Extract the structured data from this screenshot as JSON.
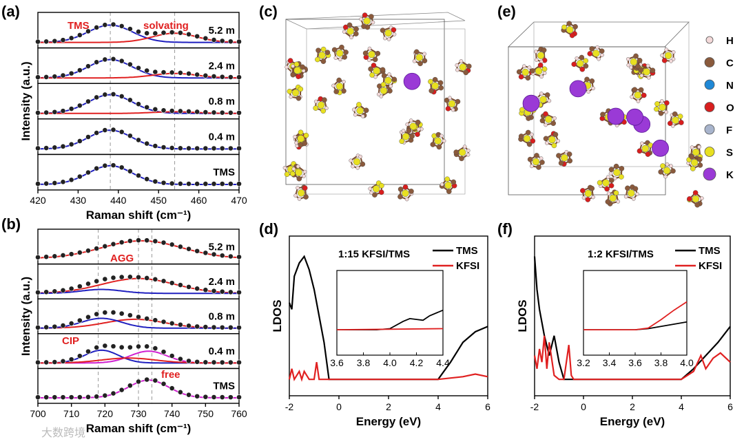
{
  "panel_labels": {
    "a": "(a)",
    "b": "(b)",
    "c": "(c)",
    "d": "(d)",
    "e": "(e)",
    "f": "(f)"
  },
  "watermark": "大数跨境",
  "chart_data": [
    {
      "id": "a",
      "type": "line",
      "title": "",
      "xlabel": "Raman shift (cm⁻¹)",
      "ylabel": "Intensity (a.u.)",
      "xlim": [
        420,
        470
      ],
      "xticks": [
        420,
        430,
        440,
        450,
        460,
        470
      ],
      "dashed_lines_x": [
        438,
        454
      ],
      "annotations": [
        "TMS",
        "solvating"
      ],
      "subplots": [
        {
          "label": "5.2 m",
          "series": [
            {
              "name": "TMS (blue fit)",
              "color": "#1f1fbf",
              "center": 438,
              "width": 5.5,
              "height": 0.85
            },
            {
              "name": "solvating (red fit)",
              "color": "#e02020",
              "center": 454,
              "width": 5.5,
              "height": 0.45
            }
          ]
        },
        {
          "label": "2.4 m",
          "series": [
            {
              "name": "TMS (blue fit)",
              "color": "#1f1fbf",
              "center": 438,
              "width": 5.5,
              "height": 0.9
            },
            {
              "name": "solvating (red fit)",
              "color": "#e02020",
              "center": 454,
              "width": 5.5,
              "height": 0.22
            }
          ]
        },
        {
          "label": "0.8 m",
          "series": [
            {
              "name": "TMS (blue fit)",
              "color": "#1f1fbf",
              "center": 438,
              "width": 5.5,
              "height": 0.92
            },
            {
              "name": "solvating (red fit)",
              "color": "#e02020",
              "center": 454,
              "width": 5.5,
              "height": 0.08
            }
          ]
        },
        {
          "label": "0.4 m",
          "series": [
            {
              "name": "TMS (blue fit)",
              "color": "#1f1fbf",
              "center": 438,
              "width": 5.5,
              "height": 0.92
            }
          ]
        },
        {
          "label": "TMS",
          "series": [
            {
              "name": "TMS (blue fit)",
              "color": "#1f1fbf",
              "center": 438,
              "width": 5.5,
              "height": 0.92
            }
          ]
        }
      ]
    },
    {
      "id": "b",
      "type": "line",
      "title": "",
      "xlabel": "Raman shift (cm⁻¹)",
      "ylabel": "Intensity (a.u.)",
      "xlim": [
        700,
        760
      ],
      "xticks": [
        700,
        710,
        720,
        730,
        740,
        750,
        760
      ],
      "dashed_lines_x": [
        718,
        730,
        734
      ],
      "annotations": [
        "AGG",
        "CIP",
        "free"
      ],
      "subplots": [
        {
          "label": "5.2 m",
          "series": [
            {
              "name": "AGG",
              "color": "#e02020",
              "center": 731,
              "width": 12,
              "height": 0.9
            }
          ]
        },
        {
          "label": "2.4 m",
          "series": [
            {
              "name": "AGG",
              "color": "#e02020",
              "center": 730,
              "width": 11,
              "height": 0.75
            },
            {
              "name": "CIP",
              "color": "#1f1fbf",
              "center": 719,
              "width": 6,
              "height": 0.2
            }
          ]
        },
        {
          "label": "0.8 m",
          "series": [
            {
              "name": "AGG",
              "color": "#e02020",
              "center": 729,
              "width": 9,
              "height": 0.45
            },
            {
              "name": "CIP",
              "color": "#1f1fbf",
              "center": 719,
              "width": 6,
              "height": 0.5
            }
          ]
        },
        {
          "label": "0.4 m",
          "series": [
            {
              "name": "CIP",
              "color": "#1f1fbf",
              "center": 719,
              "width": 5,
              "height": 0.65
            },
            {
              "name": "free",
              "color": "#d020d0",
              "center": 733,
              "width": 5.5,
              "height": 0.6
            },
            {
              "name": "AGG",
              "color": "#e02020",
              "center": 727,
              "width": 8,
              "height": 0.25
            }
          ]
        },
        {
          "label": "TMS",
          "series": [
            {
              "name": "free",
              "color": "#d020d0",
              "center": 733,
              "width": 6,
              "height": 0.9
            }
          ]
        }
      ]
    },
    {
      "id": "d",
      "type": "line",
      "title": "1:15 KFSI/TMS",
      "xlabel": "Energy (eV)",
      "ylabel": "LDOS",
      "xlim": [
        -2,
        6
      ],
      "xticks": [
        -2,
        0,
        2,
        4,
        6
      ],
      "legend": [
        "TMS",
        "KFSI"
      ],
      "series": [
        {
          "name": "TMS",
          "color": "#000000",
          "x": [
            -2,
            -1.9,
            -1.8,
            -1.6,
            -1.4,
            -1.2,
            -1.0,
            -0.8,
            -0.6,
            -0.4,
            4.0,
            4.5,
            5.0,
            5.5,
            6.0
          ],
          "y": [
            0.6,
            0.55,
            0.8,
            0.9,
            0.95,
            0.85,
            0.7,
            0.5,
            0.3,
            0.02,
            0.02,
            0.15,
            0.3,
            0.38,
            0.42
          ]
        },
        {
          "name": "KFSI",
          "color": "#e02020",
          "x": [
            -2,
            -1.9,
            -1.8,
            -1.6,
            -1.5,
            -1.4,
            -1.2,
            -1.0,
            -0.9,
            -0.8,
            -0.7,
            4.0,
            5.0,
            5.5,
            6.0
          ],
          "y": [
            0.02,
            0.1,
            0.02,
            0.08,
            0.02,
            0.08,
            0.02,
            0.02,
            0.15,
            0.02,
            0.02,
            0.02,
            0.04,
            0.06,
            0.04
          ]
        }
      ],
      "inset": {
        "xlim": [
          3.6,
          4.4
        ],
        "xticks": [
          3.6,
          3.8,
          4.0,
          4.2,
          4.4
        ],
        "series": [
          {
            "name": "TMS",
            "color": "#000000",
            "x": [
              3.6,
              3.9,
              4.0,
              4.1,
              4.15,
              4.25,
              4.3,
              4.4
            ],
            "y": [
              0.0,
              0.0,
              0.02,
              0.15,
              0.2,
              0.17,
              0.25,
              0.35
            ]
          },
          {
            "name": "KFSI",
            "color": "#e02020",
            "x": [
              3.6,
              4.0,
              4.4
            ],
            "y": [
              0.0,
              0.01,
              0.02
            ]
          }
        ]
      }
    },
    {
      "id": "f",
      "type": "line",
      "title": "1:2 KFSI/TMS",
      "xlabel": "Energy (eV)",
      "ylabel": "LDOS",
      "xlim": [
        -2,
        6
      ],
      "xticks": [
        -2,
        0,
        2,
        4,
        6
      ],
      "legend": [
        "TMS",
        "KFSI"
      ],
      "series": [
        {
          "name": "TMS",
          "color": "#000000",
          "x": [
            -2,
            -1.9,
            -1.8,
            -1.6,
            -1.4,
            -1.2,
            -1.0,
            -0.8,
            -0.6,
            4.0,
            4.5,
            5.0,
            5.5,
            6.0
          ],
          "y": [
            0.95,
            0.7,
            0.55,
            0.35,
            0.2,
            0.35,
            0.15,
            0.02,
            0.02,
            0.02,
            0.1,
            0.2,
            0.3,
            0.42
          ]
        },
        {
          "name": "KFSI",
          "color": "#e02020",
          "x": [
            -2,
            -1.9,
            -1.8,
            -1.7,
            -1.6,
            -1.5,
            -1.4,
            -1.2,
            -1.0,
            -0.8,
            -0.6,
            -0.5,
            -0.4,
            4.0,
            4.5,
            4.8,
            5.0,
            5.3,
            5.6,
            6.0
          ],
          "y": [
            0.2,
            0.1,
            0.25,
            0.15,
            0.35,
            0.1,
            0.3,
            0.05,
            0.02,
            0.02,
            0.28,
            0.05,
            0.02,
            0.02,
            0.08,
            0.2,
            0.1,
            0.18,
            0.22,
            0.15
          ]
        }
      ],
      "inset": {
        "xlim": [
          3.2,
          4.0
        ],
        "xticks": [
          3.2,
          3.4,
          3.6,
          3.8,
          4.0
        ],
        "series": [
          {
            "name": "TMS",
            "color": "#000000",
            "x": [
              3.2,
              3.6,
              3.7,
              3.8,
              3.9,
              4.0
            ],
            "y": [
              0.0,
              0.0,
              0.02,
              0.06,
              0.1,
              0.14
            ]
          },
          {
            "name": "KFSI",
            "color": "#e02020",
            "x": [
              3.2,
              3.6,
              3.7,
              3.8,
              3.9,
              4.0
            ],
            "y": [
              0.0,
              0.0,
              0.03,
              0.18,
              0.35,
              0.5
            ]
          }
        ]
      }
    }
  ],
  "structure_c": {
    "caption": "(c)"
  },
  "structure_e": {
    "caption": "(e)"
  },
  "element_legend": [
    {
      "symbol": "H",
      "color": "#f3d9d9"
    },
    {
      "symbol": "C",
      "color": "#8a5a3c"
    },
    {
      "symbol": "N",
      "color": "#1f88d6"
    },
    {
      "symbol": "O",
      "color": "#d81e1e"
    },
    {
      "symbol": "F",
      "color": "#a8b4cc"
    },
    {
      "symbol": "S",
      "color": "#e8e020"
    },
    {
      "symbol": "K",
      "color": "#9a3ad6"
    }
  ]
}
